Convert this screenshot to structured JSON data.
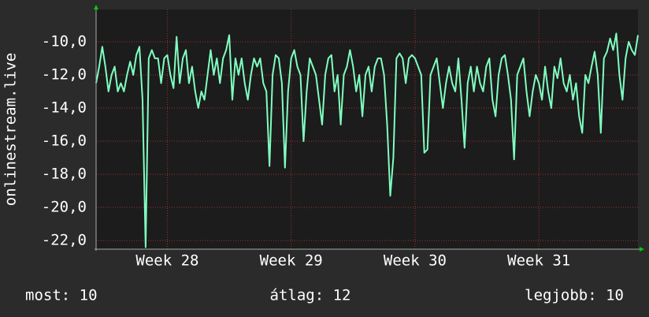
{
  "chart_data": {
    "type": "line",
    "y_label": "onlinestream.live",
    "values": [
      -12.5,
      -11.5,
      -10.3,
      -11.5,
      -13,
      -12,
      -11.5,
      -13,
      -12.5,
      -13,
      -12,
      -11.2,
      -12,
      -10.8,
      -10.3,
      -13.5,
      -22.4,
      -11,
      -10.5,
      -11,
      -11,
      -12.5,
      -11,
      -10.8,
      -12,
      -12.8,
      -9.7,
      -12.5,
      -11,
      -10.5,
      -12.5,
      -11.5,
      -13,
      -14,
      -13,
      -13.5,
      -12,
      -10.5,
      -12,
      -11,
      -12.5,
      -11,
      -10.5,
      -9.6,
      -13.5,
      -11,
      -12,
      -11,
      -12.5,
      -13.5,
      -12,
      -11,
      -11.5,
      -11,
      -12.5,
      -13,
      -17.5,
      -12,
      -10.8,
      -11,
      -12.5,
      -17.6,
      -13,
      -11,
      -10.5,
      -11.5,
      -12,
      -16,
      -13,
      -11,
      -11.5,
      -12,
      -13.5,
      -15,
      -12,
      -11,
      -10.8,
      -13,
      -12,
      -15,
      -12,
      -11.5,
      -10.5,
      -11.5,
      -13,
      -12,
      -14.5,
      -12,
      -11.5,
      -13,
      -11.5,
      -11,
      -11,
      -12,
      -15,
      -19.3,
      -17,
      -11,
      -10.7,
      -11,
      -12.5,
      -11,
      -10.8,
      -11,
      -11.5,
      -12,
      -16.7,
      -16.5,
      -12,
      -11.5,
      -11,
      -12.5,
      -14,
      -12.5,
      -11.5,
      -12.5,
      -13,
      -11,
      -13.5,
      -16.4,
      -12.5,
      -11.5,
      -13,
      -11.5,
      -12.5,
      -13,
      -11.5,
      -11,
      -13.5,
      -14.5,
      -12,
      -11,
      -10.8,
      -12,
      -13.5,
      -17.1,
      -12,
      -11.5,
      -11,
      -13,
      -14.5,
      -13,
      -12,
      -12.5,
      -13.5,
      -11.5,
      -13,
      -14,
      -11.5,
      -12.2,
      -11,
      -12.5,
      -13,
      -12,
      -13.5,
      -12.5,
      -14.5,
      -15.5,
      -12,
      -12.5,
      -11.5,
      -10.6,
      -12,
      -15.5,
      -11,
      -10.6,
      -9.8,
      -10.5,
      -9.5,
      -12,
      -13.5,
      -11,
      -10,
      -10.5,
      -10.8,
      -9.6
    ],
    "color": "#80ffc0",
    "xlim": [
      0,
      175
    ],
    "xticks": [
      {
        "value": 23,
        "label": "Week 28"
      },
      {
        "value": 63,
        "label": "Week 29"
      },
      {
        "value": 103,
        "label": "Week 30"
      },
      {
        "value": 143,
        "label": "Week 31"
      }
    ],
    "ylim": [
      -22.52,
      -8.05
    ],
    "yticks": [
      {
        "value": -22,
        "label": "-22,0"
      },
      {
        "value": -20,
        "label": "-20,0"
      },
      {
        "value": -18,
        "label": "-18,0"
      },
      {
        "value": -16,
        "label": "-16,0"
      },
      {
        "value": -14,
        "label": "-14,0"
      },
      {
        "value": -12,
        "label": "-12,0"
      },
      {
        "value": -10,
        "label": "-10,0"
      }
    ],
    "grid": true,
    "summary": [
      "most: 10",
      "átlag: 12",
      "legjobb: 10"
    ]
  }
}
